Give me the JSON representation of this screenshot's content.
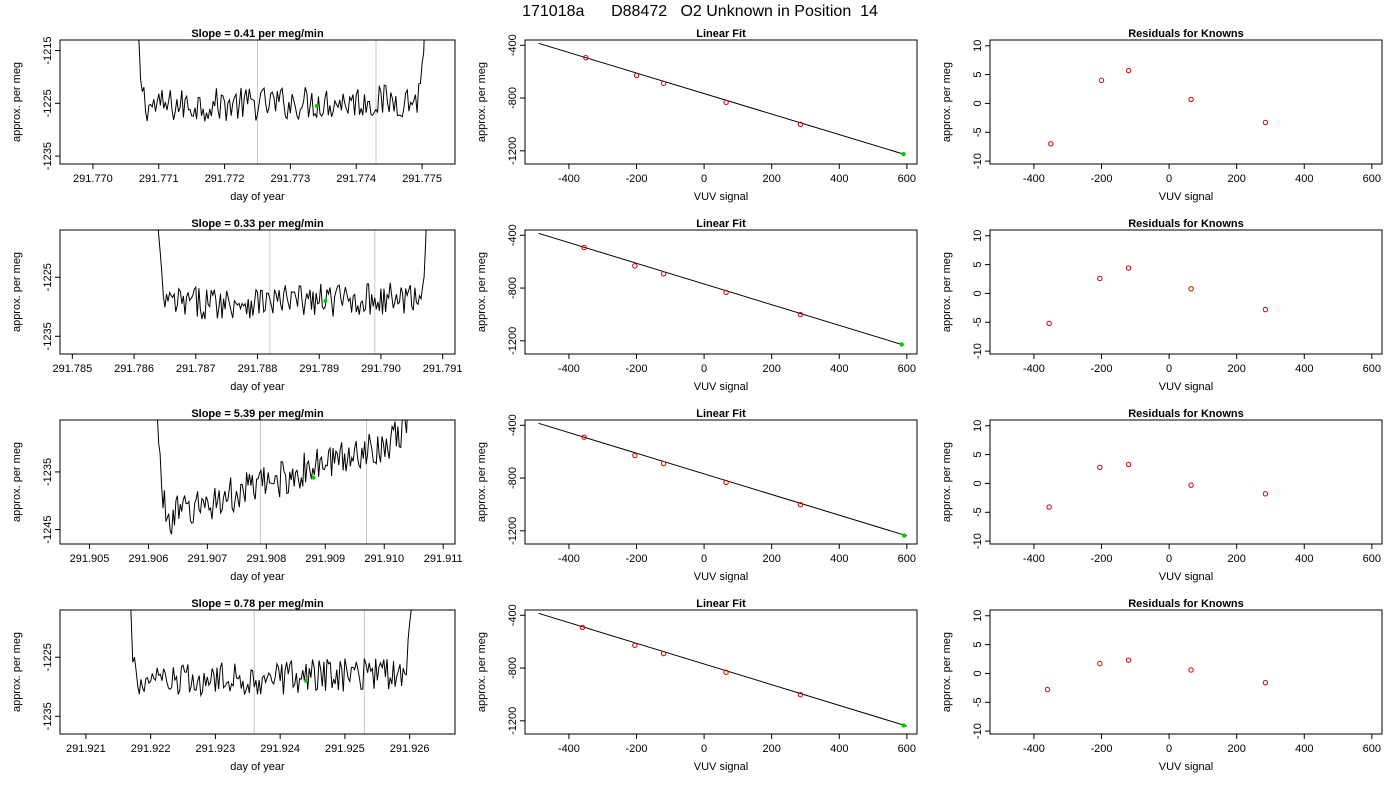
{
  "page": {
    "title_run": "171018a",
    "title_id": "D88472",
    "title_desc": "O2 Unknown in Position  14"
  },
  "colors": {
    "trace": "#000000",
    "point_known": "#cc0000",
    "point_unknown": "#00cc00",
    "marker_line": "#c8c8c8"
  },
  "chart_data": [
    {
      "type": "line",
      "panel": "time-series",
      "row": 1,
      "title": "Slope =  0.41  per meg/min",
      "xlabel": "day of year",
      "ylabel": "approx. per meg",
      "xlim": [
        291.7695,
        291.7755
      ],
      "ylim": [
        -1236.5,
        -1213
      ],
      "xticks": [
        291.77,
        291.771,
        291.772,
        291.773,
        291.774,
        291.775
      ],
      "xtick_labels": [
        "291.770",
        "291.771",
        "291.772",
        "291.773",
        "291.774",
        "291.775"
      ],
      "yticks": [
        -1215,
        -1225,
        -1235
      ],
      "ytick_labels": [
        "-1215",
        "-1225",
        "-1235"
      ],
      "series": [
        {
          "baseline": -1225,
          "amplitude": 1.6,
          "slope": 0.41,
          "start": 291.7706,
          "end": 291.7751
        }
      ],
      "markers": [
        291.7725,
        291.7743
      ],
      "unknown_point": {
        "x": 291.7734,
        "y": -1225.5
      }
    },
    {
      "type": "scatter",
      "panel": "linear-fit",
      "row": 1,
      "title": "Linear Fit",
      "xlabel": "VUV signal",
      "ylabel": "approx. per meg",
      "xlim": [
        -530,
        630
      ],
      "ylim": [
        -1300,
        -360
      ],
      "xticks": [
        -400,
        -200,
        0,
        200,
        400,
        600
      ],
      "xtick_labels": [
        "-400",
        "-200",
        "0",
        "200",
        "400",
        "600"
      ],
      "yticks": [
        -400,
        -800,
        -1200
      ],
      "ytick_labels": [
        "-400",
        "-800",
        "-1200"
      ],
      "knowns": {
        "x": [
          -350,
          -200,
          -120,
          65,
          285
        ],
        "y": [
          -494,
          -629,
          -689,
          -833,
          -999
        ]
      },
      "unknown": {
        "x": 590,
        "y": -1225
      },
      "fit": {
        "x": [
          -490,
          590
        ],
        "y": [
          -385,
          -1225
        ]
      }
    },
    {
      "type": "scatter",
      "panel": "residuals",
      "row": 1,
      "title": "Residuals for Knowns",
      "xlabel": "VUV signal",
      "ylabel": "approx. per meg",
      "xlim": [
        -530,
        630
      ],
      "ylim": [
        -10.5,
        11
      ],
      "xticks": [
        -400,
        -200,
        0,
        200,
        400,
        600
      ],
      "xtick_labels": [
        "-400",
        "-200",
        "0",
        "200",
        "400",
        "600"
      ],
      "yticks": [
        10,
        5,
        0,
        -5,
        -10
      ],
      "ytick_labels": [
        "10",
        "5",
        "0",
        "-5",
        "-10"
      ],
      "x": [
        -350,
        -200,
        -120,
        65,
        285
      ],
      "y": [
        -7.0,
        4.0,
        5.7,
        0.7,
        -3.3
      ]
    },
    {
      "type": "line",
      "panel": "time-series",
      "row": 2,
      "title": "Slope =  0.33  per meg/min",
      "xlabel": "day of year",
      "ylabel": "approx. per meg",
      "xlim": [
        291.7848,
        291.7912
      ],
      "ylim": [
        -1238,
        -1217
      ],
      "xticks": [
        291.785,
        291.786,
        291.787,
        291.788,
        291.789,
        291.79,
        291.791
      ],
      "xtick_labels": [
        "291.785",
        "291.786",
        "291.787",
        "291.788",
        "291.789",
        "291.790",
        "291.791"
      ],
      "yticks": [
        -1225,
        -1235
      ],
      "ytick_labels": [
        "-1225",
        "-1235"
      ],
      "series": [
        {
          "baseline": -1229,
          "amplitude": 1.4,
          "slope": 0.33,
          "start": 291.7863,
          "end": 291.7908
        }
      ],
      "markers": [
        291.7882,
        291.7899
      ],
      "unknown_point": {
        "x": 291.7891,
        "y": -1229
      }
    },
    {
      "type": "scatter",
      "panel": "linear-fit",
      "row": 2,
      "title": "Linear Fit",
      "xlabel": "VUV signal",
      "ylabel": "approx. per meg",
      "xlim": [
        -530,
        630
      ],
      "ylim": [
        -1300,
        -360
      ],
      "xticks": [
        -400,
        -200,
        0,
        200,
        400,
        600
      ],
      "xtick_labels": [
        "-400",
        "-200",
        "0",
        "200",
        "400",
        "600"
      ],
      "yticks": [
        -400,
        -800,
        -1200
      ],
      "ytick_labels": [
        "-400",
        "-800",
        "-1200"
      ],
      "knowns": {
        "x": [
          -355,
          -205,
          -120,
          65,
          285
        ],
        "y": [
          -493,
          -632,
          -692,
          -833,
          -1001
        ]
      },
      "unknown": {
        "x": 585,
        "y": -1228
      },
      "fit": {
        "x": [
          -490,
          590
        ],
        "y": [
          -385,
          -1232
        ]
      }
    },
    {
      "type": "scatter",
      "panel": "residuals",
      "row": 2,
      "title": "Residuals for Knowns",
      "xlabel": "VUV signal",
      "ylabel": "approx. per meg",
      "xlim": [
        -530,
        630
      ],
      "ylim": [
        -10.5,
        11
      ],
      "xticks": [
        -400,
        -200,
        0,
        200,
        400,
        600
      ],
      "xtick_labels": [
        "-400",
        "-200",
        "0",
        "200",
        "400",
        "600"
      ],
      "yticks": [
        10,
        5,
        0,
        -5,
        -10
      ],
      "ytick_labels": [
        "10",
        "5",
        "0",
        "-5",
        "-10"
      ],
      "x": [
        -355,
        -205,
        -120,
        65,
        285
      ],
      "y": [
        -5.2,
        2.6,
        4.4,
        0.8,
        -2.8
      ]
    },
    {
      "type": "line",
      "panel": "time-series",
      "row": 3,
      "title": "Slope =  5.39  per meg/min",
      "xlabel": "day of year",
      "ylabel": "approx. per meg",
      "xlim": [
        291.9045,
        291.9112
      ],
      "ylim": [
        -1247.5,
        -1226
      ],
      "xticks": [
        291.905,
        291.906,
        291.907,
        291.908,
        291.909,
        291.91,
        291.911
      ],
      "xtick_labels": [
        "291.905",
        "291.906",
        "291.907",
        "291.908",
        "291.909",
        "291.910",
        "291.911"
      ],
      "yticks": [
        -1235,
        -1245
      ],
      "ytick_labels": [
        "-1235",
        "-1245"
      ],
      "series": [
        {
          "baseline": -1236,
          "amplitude": 1.6,
          "slope": 5.39,
          "start": 291.9061,
          "end": 291.9105
        }
      ],
      "markers": [
        291.9079,
        291.9097
      ],
      "unknown_point": {
        "x": 291.9088,
        "y": -1236
      }
    },
    {
      "type": "scatter",
      "panel": "linear-fit",
      "row": 3,
      "title": "Linear Fit",
      "xlabel": "VUV signal",
      "ylabel": "approx. per meg",
      "xlim": [
        -530,
        630
      ],
      "ylim": [
        -1300,
        -360
      ],
      "xticks": [
        -400,
        -200,
        0,
        200,
        400,
        600
      ],
      "xtick_labels": [
        "-400",
        "-200",
        "0",
        "200",
        "400",
        "600"
      ],
      "yticks": [
        -400,
        -800,
        -1200
      ],
      "ytick_labels": [
        "-400",
        "-800",
        "-1200"
      ],
      "knowns": {
        "x": [
          -355,
          -205,
          -120,
          65,
          285
        ],
        "y": [
          -490,
          -629,
          -690,
          -833,
          -1002
        ]
      },
      "unknown": {
        "x": 592,
        "y": -1236
      },
      "fit": {
        "x": [
          -490,
          600
        ],
        "y": [
          -385,
          -1238
        ]
      }
    },
    {
      "type": "scatter",
      "panel": "residuals",
      "row": 3,
      "title": "Residuals for Knowns",
      "xlabel": "VUV signal",
      "ylabel": "approx. per meg",
      "xlim": [
        -530,
        630
      ],
      "ylim": [
        -10.5,
        11
      ],
      "xticks": [
        -400,
        -200,
        0,
        200,
        400,
        600
      ],
      "xtick_labels": [
        "-400",
        "-200",
        "0",
        "200",
        "400",
        "600"
      ],
      "yticks": [
        10,
        5,
        0,
        -5,
        -10
      ],
      "ytick_labels": [
        "10",
        "5",
        "0",
        "-5",
        "-10"
      ],
      "x": [
        -355,
        -205,
        -120,
        65,
        285
      ],
      "y": [
        -4.1,
        2.8,
        3.3,
        -0.3,
        -1.8
      ]
    },
    {
      "type": "line",
      "panel": "time-series",
      "row": 4,
      "title": "Slope =  0.78  per meg/min",
      "xlabel": "day of year",
      "ylabel": "approx. per meg",
      "xlim": [
        291.9206,
        291.9267
      ],
      "ylim": [
        -1238,
        -1217
      ],
      "xticks": [
        291.921,
        291.922,
        291.923,
        291.924,
        291.925,
        291.926
      ],
      "xtick_labels": [
        "291.921",
        "291.922",
        "291.923",
        "291.924",
        "291.925",
        "291.926"
      ],
      "yticks": [
        -1225,
        -1235
      ],
      "ytick_labels": [
        "-1225",
        "-1235"
      ],
      "series": [
        {
          "baseline": -1228.5,
          "amplitude": 1.5,
          "slope": 0.78,
          "start": 291.9216,
          "end": 291.9261
        }
      ],
      "markers": [
        291.9236,
        291.9253
      ],
      "unknown_point": {
        "x": 291.9244,
        "y": -1229
      }
    },
    {
      "type": "scatter",
      "panel": "linear-fit",
      "row": 4,
      "title": "Linear Fit",
      "xlabel": "VUV signal",
      "ylabel": "approx. per meg",
      "xlim": [
        -530,
        630
      ],
      "ylim": [
        -1300,
        -360
      ],
      "xticks": [
        -400,
        -200,
        0,
        200,
        400,
        600
      ],
      "xtick_labels": [
        "-400",
        "-200",
        "0",
        "200",
        "400",
        "600"
      ],
      "yticks": [
        -400,
        -800,
        -1200
      ],
      "ytick_labels": [
        "-400",
        "-800",
        "-1200"
      ],
      "knowns": {
        "x": [
          -360,
          -205,
          -120,
          65,
          285
        ],
        "y": [
          -492,
          -628,
          -690,
          -832,
          -1002
        ]
      },
      "unknown": {
        "x": 590,
        "y": -1235
      },
      "fit": {
        "x": [
          -490,
          600
        ],
        "y": [
          -385,
          -1240
        ]
      }
    },
    {
      "type": "scatter",
      "panel": "residuals",
      "row": 4,
      "title": "Residuals for Knowns",
      "xlabel": "VUV signal",
      "ylabel": "approx. per meg",
      "xlim": [
        -530,
        630
      ],
      "ylim": [
        -10.5,
        11
      ],
      "xticks": [
        -400,
        -200,
        0,
        200,
        400,
        600
      ],
      "xtick_labels": [
        "-400",
        "-200",
        "0",
        "200",
        "400",
        "600"
      ],
      "yticks": [
        10,
        5,
        0,
        -5,
        -10
      ],
      "ytick_labels": [
        "10",
        "5",
        "0",
        "-5",
        "-10"
      ],
      "x": [
        -360,
        -205,
        -120,
        65,
        285
      ],
      "y": [
        -2.8,
        1.7,
        2.3,
        0.6,
        -1.6
      ]
    }
  ]
}
